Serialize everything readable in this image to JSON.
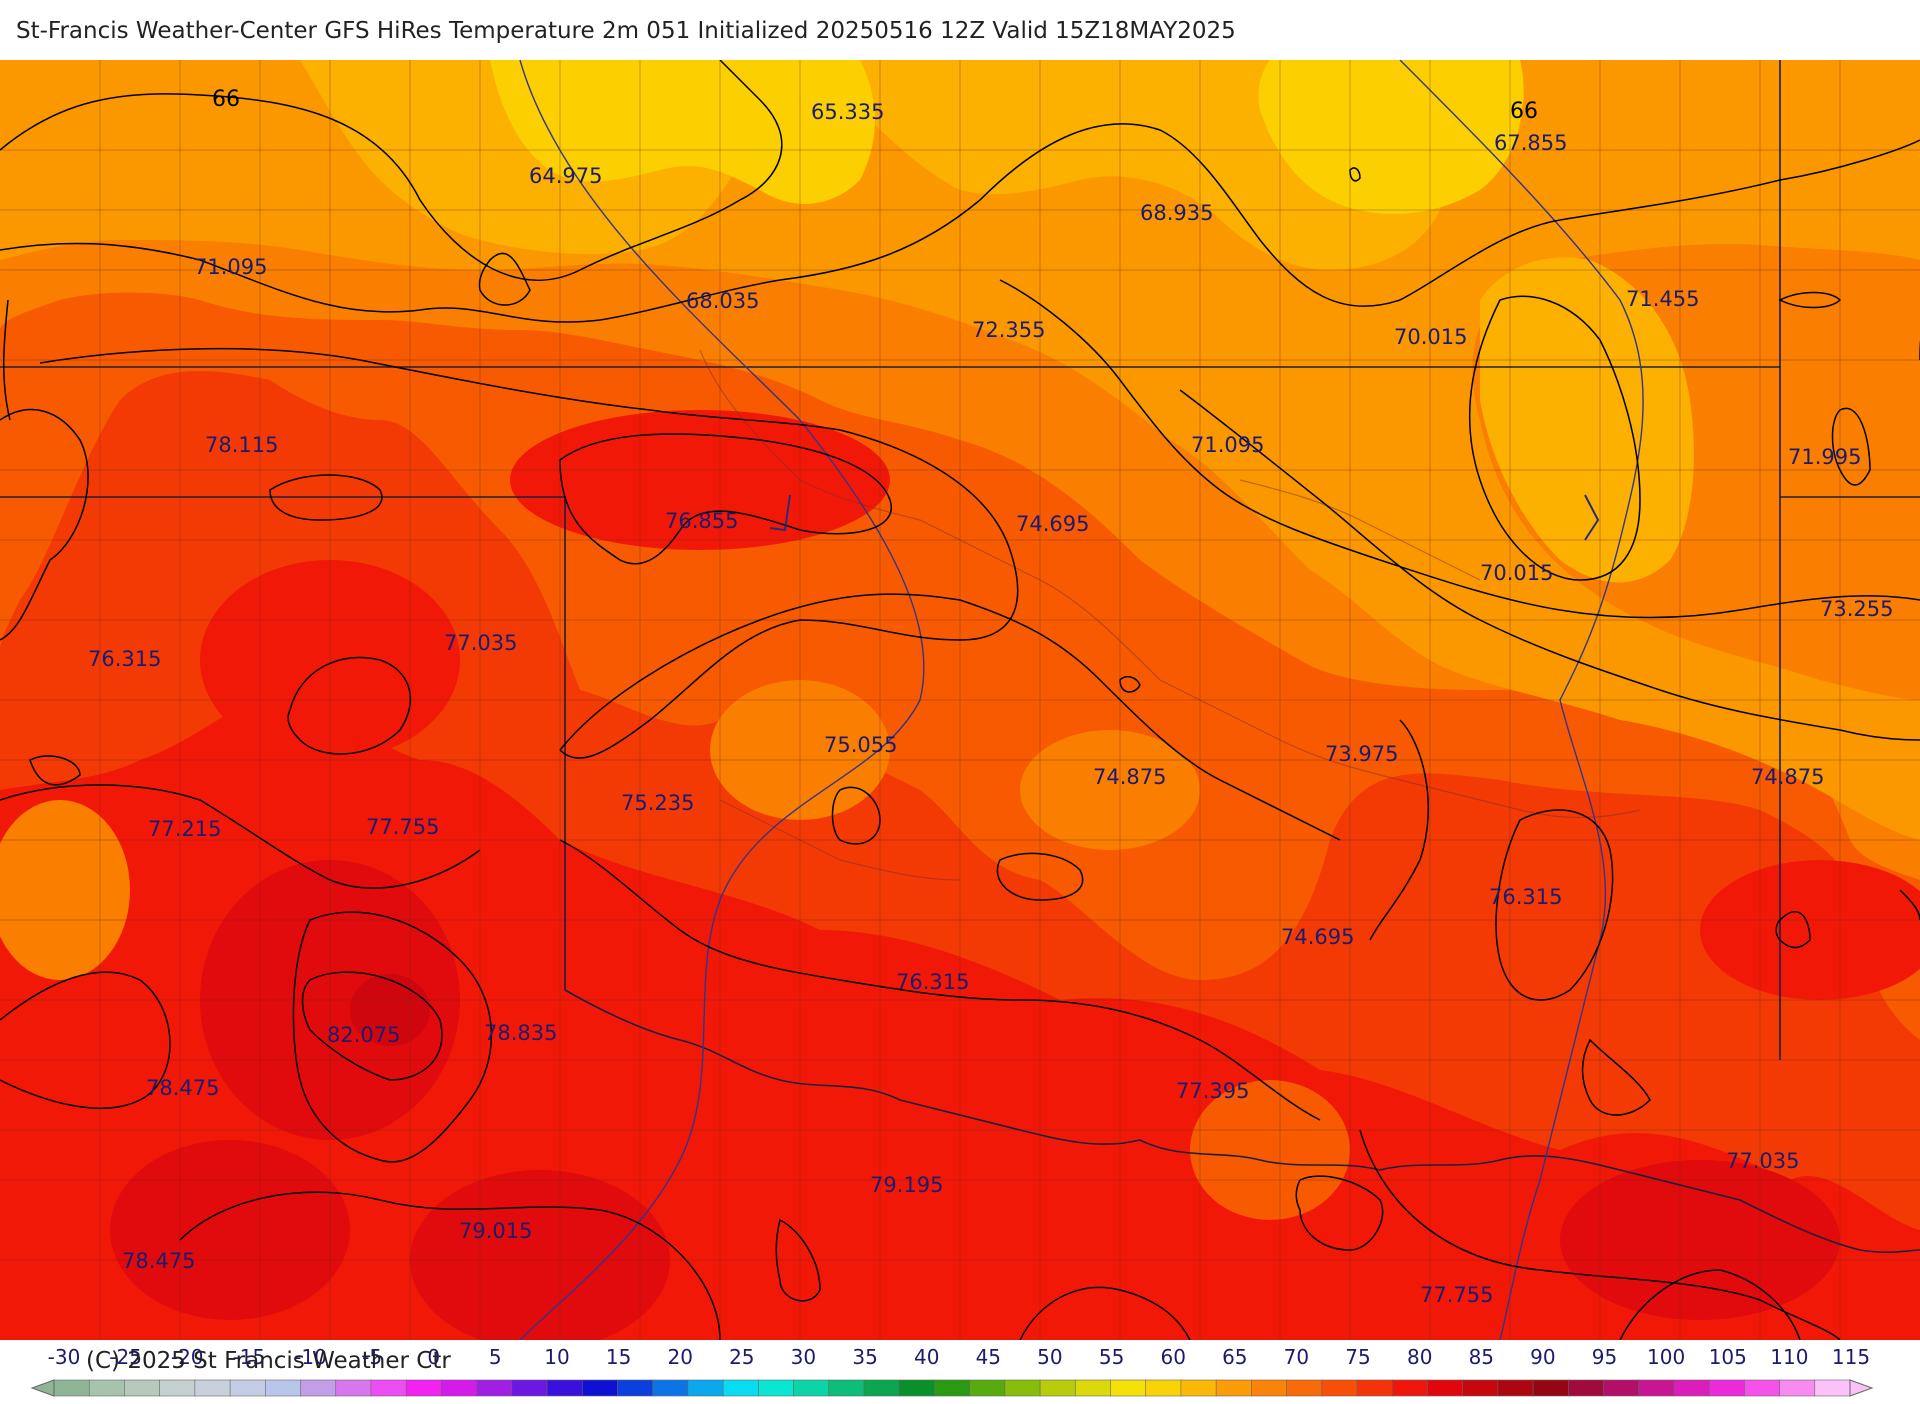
{
  "title": "St-Francis Weather-Center GFS HiRes Temperature 2m  051 Initialized 20250516 12Z Valid 15Z18MAY2025",
  "copyright": "(C) 2025 St Francis Weather Ctr",
  "temperature_labels": [
    "65.335",
    "64.975",
    "67.855",
    "68.935",
    "71.095",
    "68.035",
    "72.355",
    "70.015",
    "71.455",
    "78.115",
    "71.095",
    "71.995",
    "76.855",
    "74.695",
    "70.015",
    "73.255",
    "76.315",
    "77.035",
    "75.055",
    "74.875",
    "73.975",
    "74.875",
    "75.235",
    "77.215",
    "77.755",
    "76.315",
    "74.695",
    "76.315",
    "82.075",
    "78.835",
    "78.475",
    "77.395",
    "79.195",
    "77.035",
    "79.015",
    "78.475",
    "77.755"
  ],
  "contour_labels": [
    "66",
    "66"
  ],
  "legend": {
    "ticks": [
      "-30",
      "-25",
      "-20",
      "-15",
      "-10",
      "-5",
      "0",
      "5",
      "10",
      "15",
      "20",
      "25",
      "30",
      "35",
      "40",
      "45",
      "50",
      "55",
      "60",
      "65",
      "70",
      "75",
      "80",
      "85",
      "90",
      "95",
      "100",
      "105",
      "110",
      "115"
    ],
    "colors": [
      "#8fb596",
      "#a7c3ab",
      "#b7c9bd",
      "#c4cfd0",
      "#c8d0dc",
      "#c3cce4",
      "#b8c6ea",
      "#c29ee8",
      "#d677f0",
      "#ec4ef3",
      "#f322f0",
      "#d51bea",
      "#a11ee4",
      "#6c17e2",
      "#3a10dc",
      "#0e10d4",
      "#0b3fde",
      "#0d74e8",
      "#0aa9ef",
      "#07dcf3",
      "#09e7d2",
      "#0bd5a6",
      "#0bbf7b",
      "#0aa650",
      "#0a902a",
      "#2a9a12",
      "#58ab0e",
      "#89bd0c",
      "#b7cd0b",
      "#dbd90a",
      "#f5e108",
      "#fad306",
      "#fcb806",
      "#fb9c08",
      "#fa8308",
      "#f96a08",
      "#f74e08",
      "#f5330a",
      "#f0170a",
      "#e1060c",
      "#c8060e",
      "#ad0610",
      "#950612",
      "#a10a3c",
      "#b30f68",
      "#c81594",
      "#dc1cbb",
      "#ed2ad9",
      "#f552ea",
      "#f98af2",
      "#fcc1f8"
    ]
  },
  "color_scale": {
    "gold": "#fcd000",
    "orange_light": "#fcb000",
    "orange": "#fb9800",
    "orange_dark": "#fa7e00",
    "red_orange": "#f75a00",
    "red_light": "#f43a04",
    "red": "#f21808",
    "red_dark": "#e10a0c",
    "red_deep": "#cf060e"
  }
}
